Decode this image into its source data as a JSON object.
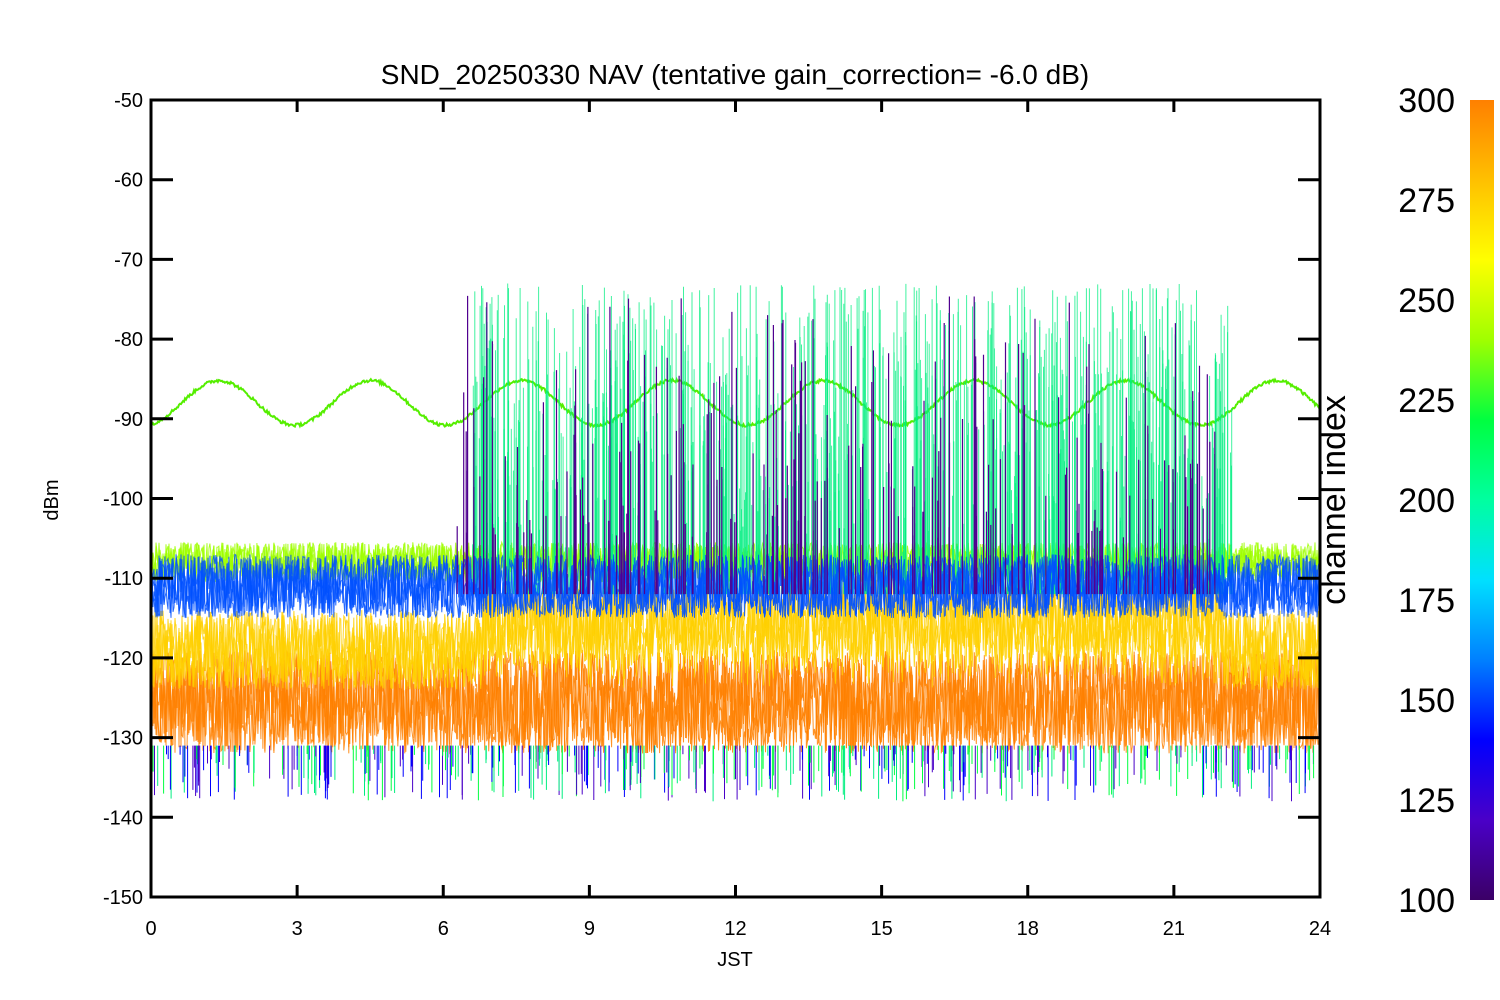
{
  "chart_data": {
    "type": "line",
    "title": "SND_20250330 NAV (tentative gain_correction= -6.0 dB)",
    "xlabel": "JST",
    "ylabel": "dBm",
    "xlim": [
      0,
      24
    ],
    "ylim": [
      -150,
      -50
    ],
    "x_ticks": [
      "0",
      "3",
      "6",
      "9",
      "12",
      "15",
      "18",
      "21",
      "24"
    ],
    "y_ticks": [
      "-50",
      "-60",
      "-70",
      "-80",
      "-90",
      "-100",
      "-110",
      "-120",
      "-130",
      "-140",
      "-150"
    ],
    "colorbar": {
      "label": "channel index",
      "range": [
        100,
        300
      ],
      "ticks": [
        "300",
        "275",
        "250",
        "225",
        "200",
        "175",
        "150",
        "125",
        "100"
      ],
      "colors": [
        "#3b0066",
        "#4a00c8",
        "#0000ff",
        "#0080ff",
        "#00e0ff",
        "#00ffa0",
        "#00ff40",
        "#a0ff00",
        "#ffff00",
        "#ffc000",
        "#ff8000"
      ]
    },
    "series": [
      {
        "channel": 290,
        "color": "#ff8000",
        "baseline_dbm": -125.5,
        "spread_dbm": 6.5
      },
      {
        "channel": 270,
        "color": "#ffd000",
        "baseline_dbm": -119,
        "spread_dbm": 5,
        "elevated_between_jst": [
          6.8,
          22
        ]
      },
      {
        "channel": 255,
        "color": "#9fff00",
        "baseline_dbm": -108,
        "spread_dbm": 2.5
      },
      {
        "channel": 245,
        "color": "#55ee00",
        "sinusoid": {
          "mean_dbm": -88,
          "amplitude_dbm": 2.8,
          "period_jst": 3.1
        }
      },
      {
        "channel": 205,
        "color": "#00ee80",
        "bursts": {
          "start_jst": 6.6,
          "end_jst": 22.2,
          "peak_dbm": -73,
          "floor_dbm": -112
        }
      },
      {
        "channel": 140,
        "color": "#0050ff",
        "baseline_dbm": -111,
        "spread_dbm": 4
      },
      {
        "channel": 115,
        "color": "#500090",
        "spikes": {
          "start_jst": 6.2,
          "end_jst": 22,
          "peak_dbm": -74
        }
      }
    ]
  }
}
